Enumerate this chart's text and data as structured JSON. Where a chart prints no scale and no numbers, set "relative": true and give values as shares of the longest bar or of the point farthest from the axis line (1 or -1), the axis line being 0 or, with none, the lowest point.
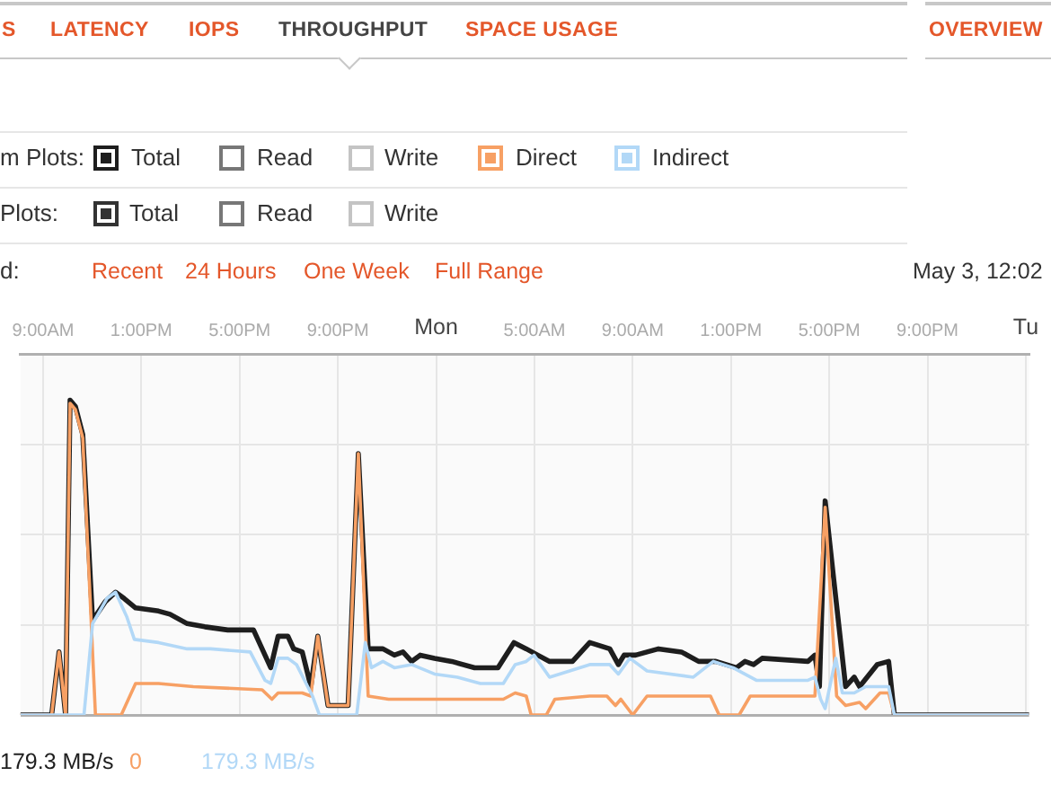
{
  "chart_data": {
    "type": "line",
    "title": "THROUGHPUT",
    "relative": true,
    "grid": true,
    "legend": "top left",
    "xlim": [
      "--05-03T08:05",
      "--05-05T01:08"
    ],
    "xticks": [
      {
        "value": "--05-03T09:00",
        "label": "9:00AM"
      },
      {
        "value": "--05-03T13:00",
        "label": "1:00PM"
      },
      {
        "value": "--05-03T17:00",
        "label": "5:00PM"
      },
      {
        "value": "--05-03T21:00",
        "label": "9:00PM"
      },
      {
        "value": "--05-04T01:00",
        "label": "Mon"
      },
      {
        "value": "--05-04T05:00",
        "label": "5:00AM"
      },
      {
        "value": "--05-04T09:00",
        "label": "9:00AM"
      },
      {
        "value": "--05-04T13:00",
        "label": "1:00PM"
      },
      {
        "value": "--05-04T17:00",
        "label": "5:00PM"
      },
      {
        "value": "--05-04T21:00",
        "label": "9:00PM"
      },
      {
        "value": "--05-05T01:00",
        "label": "Tu"
      }
    ],
    "series": [
      {
        "name": "Total",
        "color": "#1e1e1e",
        "x": [
          "--05-03T08:05",
          "--05-03T09:21",
          "--05-03T09:39",
          "--05-03T09:55",
          "--05-03T10:06",
          "--05-03T10:19",
          "--05-03T10:37",
          "--05-03T11:01",
          "--05-03T11:32",
          "--05-03T11:57",
          "--05-03T12:18",
          "--05-03T12:46",
          "--05-03T13:42",
          "--05-03T14:10",
          "--05-03T14:52",
          "--05-03T15:35",
          "--05-03T16:31",
          "--05-03T17:34",
          "--05-03T18:02",
          "--05-03T18:16",
          "--05-03T18:34",
          "--05-03T18:58",
          "--05-03T19:12",
          "--05-03T19:33",
          "--05-03T19:54",
          "--05-03T20:11",
          "--05-03T20:36",
          "--05-03T21:25",
          "--05-03T21:50",
          "--05-03T22:14",
          "--05-03T22:50",
          "--05-03T23:18",
          "--05-03T23:39",
          "--05-04T00:00",
          "--05-04T00:21",
          "--05-04T00:56",
          "--05-04T01:38",
          "--05-04T02:34",
          "--05-04T03:31",
          "--05-04T04:10",
          "--05-04T04:40",
          "--05-04T05:08",
          "--05-04T05:37",
          "--05-04T06:33",
          "--05-04T07:15",
          "--05-04T08:04",
          "--05-04T08:25",
          "--05-04T08:39",
          "--05-04T09:07",
          "--05-04T10:03",
          "--05-04T10:59",
          "--05-04T11:41",
          "--05-04T12:23",
          "--05-04T13:13",
          "--05-04T13:34",
          "--05-04T13:55",
          "--05-04T14:16",
          "--05-04T16:08",
          "--05-04T16:25",
          "--05-04T16:36",
          "--05-04T16:50",
          "--05-04T17:11",
          "--05-04T17:40",
          "--05-04T18:01",
          "--05-04T18:14",
          "--05-04T18:57",
          "--05-04T19:25",
          "--05-04T19:39",
          "--05-05T01:08"
        ],
        "values": [
          0,
          0,
          0.2,
          0,
          1,
          0.98,
          0.89,
          0.3,
          0.36,
          0.39,
          0.37,
          0.34,
          0.33,
          0.32,
          0.29,
          0.28,
          0.27,
          0.27,
          0.19,
          0.15,
          0.25,
          0.25,
          0.21,
          0.2,
          0.09,
          0.25,
          0.03,
          0.03,
          0.83,
          0.21,
          0.21,
          0.19,
          0.2,
          0.17,
          0.19,
          0.18,
          0.17,
          0.15,
          0.15,
          0.23,
          0.21,
          0.19,
          0.17,
          0.17,
          0.23,
          0.21,
          0.16,
          0.19,
          0.19,
          0.21,
          0.2,
          0.17,
          0.17,
          0.15,
          0.17,
          0.16,
          0.18,
          0.17,
          0.19,
          0.09,
          0.68,
          0.43,
          0.09,
          0.12,
          0.09,
          0.16,
          0.17,
          0,
          0
        ]
      },
      {
        "name": "Direct",
        "color": "#f7a064",
        "x": [
          "--05-03T08:05",
          "--05-03T09:21",
          "--05-03T09:39",
          "--05-03T09:55",
          "--05-03T10:06",
          "--05-03T10:19",
          "--05-03T10:37",
          "--05-03T11:08",
          "--05-03T12:11",
          "--05-03T12:46",
          "--05-03T13:42",
          "--05-03T15:07",
          "--05-03T17:55",
          "--05-03T18:19",
          "--05-03T18:34",
          "--05-03T19:33",
          "--05-03T19:54",
          "--05-03T20:11",
          "--05-03T20:36",
          "--05-03T21:25",
          "--05-03T21:50",
          "--05-03T22:14",
          "--05-03T23:04",
          "--05-04T00:56",
          "--05-04T02:48",
          "--05-04T03:44",
          "--05-04T04:13",
          "--05-04T04:40",
          "--05-04T04:52",
          "--05-04T05:29",
          "--05-04T05:50",
          "--05-04T07:15",
          "--05-04T07:57",
          "--05-04T08:18",
          "--05-04T08:31",
          "--05-04T09:00",
          "--05-04T09:35",
          "--05-04T11:28",
          "--05-04T12:10",
          "--05-04T12:31",
          "--05-04T13:20",
          "--05-04T13:47",
          "--05-04T16:08",
          "--05-04T16:25",
          "--05-04T16:50",
          "--05-04T17:18",
          "--05-04T17:40",
          "--05-04T18:14",
          "--05-04T18:29",
          "--05-04T19:04",
          "--05-04T19:25",
          "--05-04T19:39",
          "--05-05T01:08"
        ],
        "values": [
          0,
          0,
          0.2,
          0,
          0.99,
          0.97,
          0.88,
          0,
          0,
          0.1,
          0.1,
          0.09,
          0.08,
          0.05,
          0.07,
          0.07,
          0.06,
          0.25,
          0.03,
          0.03,
          0.83,
          0.06,
          0.05,
          0.05,
          0.05,
          0.05,
          0.07,
          0.06,
          0,
          0,
          0.05,
          0.06,
          0.06,
          0.03,
          0.05,
          0,
          0.06,
          0.06,
          0.06,
          0,
          0,
          0.06,
          0.06,
          0.06,
          0.66,
          0.06,
          0.03,
          0.04,
          0.02,
          0.07,
          0.07,
          0,
          0
        ]
      },
      {
        "name": "Indirect",
        "color": "#b2d8f7",
        "x": [
          "--05-03T08:05",
          "--05-03T10:40",
          "--05-03T11:01",
          "--05-03T11:36",
          "--05-03T11:57",
          "--05-03T12:25",
          "--05-03T12:43",
          "--05-03T13:42",
          "--05-03T14:52",
          "--05-03T15:49",
          "--05-03T17:26",
          "--05-03T18:02",
          "--05-03T18:16",
          "--05-03T18:34",
          "--05-03T18:58",
          "--05-03T19:19",
          "--05-03T19:58",
          "--05-03T20:15",
          "--05-03T21:46",
          "--05-03T22:07",
          "--05-03T22:22",
          "--05-03T22:50",
          "--05-03T23:18",
          "--05-04T00:00",
          "--05-04T00:56",
          "--05-04T01:52",
          "--05-04T02:48",
          "--05-04T03:44",
          "--05-04T04:13",
          "--05-04T04:40",
          "--05-04T04:59",
          "--05-04T05:37",
          "--05-04T07:15",
          "--05-04T08:04",
          "--05-04T08:25",
          "--05-04T08:53",
          "--05-04T09:35",
          "--05-04T11:28",
          "--05-04T12:17",
          "--05-04T13:05",
          "--05-04T14:02",
          "--05-04T16:08",
          "--05-04T16:25",
          "--05-04T16:39",
          "--05-04T16:50",
          "--05-04T17:16",
          "--05-04T17:32",
          "--05-04T18:01",
          "--05-04T18:29",
          "--05-04T19:25",
          "--05-04T19:39",
          "--05-05T01:08"
        ],
        "values": [
          0,
          0,
          0.29,
          0.37,
          0.39,
          0.31,
          0.24,
          0.23,
          0.21,
          0.21,
          0.2,
          0.11,
          0.1,
          0.18,
          0.18,
          0.16,
          0.06,
          0,
          0,
          0.23,
          0.15,
          0.17,
          0.15,
          0.16,
          0.13,
          0.12,
          0.1,
          0.1,
          0.16,
          0.17,
          0.19,
          0.12,
          0.16,
          0.16,
          0.13,
          0.18,
          0.14,
          0.12,
          0.17,
          0.15,
          0.11,
          0.11,
          0.12,
          0.05,
          0.02,
          0.18,
          0.07,
          0.07,
          0.09,
          0.09,
          0,
          0
        ]
      }
    ],
    "annotations": [
      "S",
      "LATENCY",
      "IOPS",
      "SPACE USAGE",
      "OVERVIEW",
      "m Plots:",
      "Read",
      "Write",
      "Plots:",
      "Total",
      "Read",
      "Write",
      "d:",
      "Recent",
      "24 Hours",
      "One Week",
      "Full Range",
      "May 3, 12:02",
      "179.3 MB/s",
      "0",
      "179.3 MB/s"
    ]
  }
}
